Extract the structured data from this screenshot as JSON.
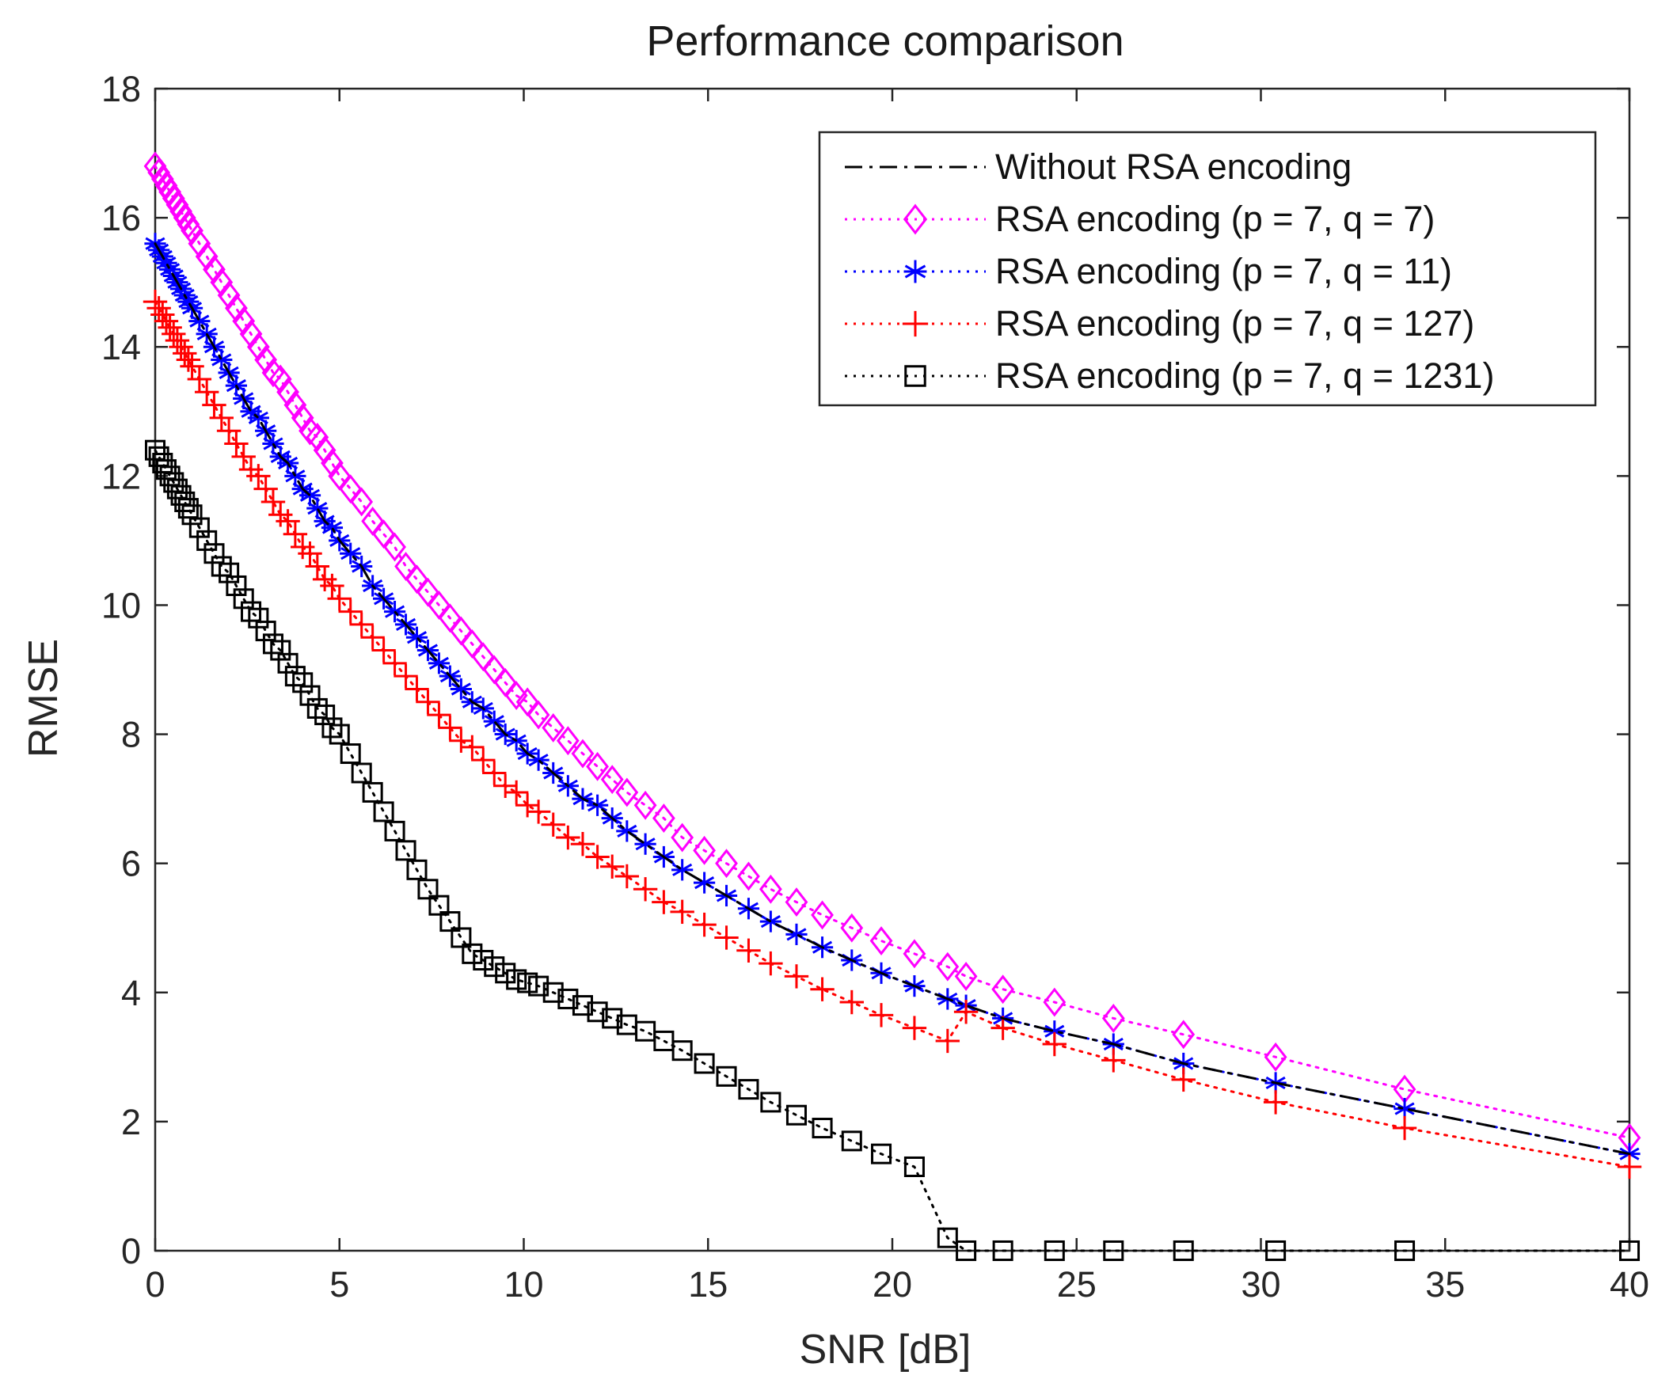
{
  "chart_data": {
    "type": "line",
    "title": "Performance comparison",
    "xlabel": "SNR [dB]",
    "ylabel": "RMSE",
    "xlim": [
      0,
      40
    ],
    "ylim": [
      0,
      18
    ],
    "xticks": [
      0,
      5,
      10,
      15,
      20,
      25,
      30,
      35,
      40
    ],
    "yticks": [
      0,
      2,
      4,
      6,
      8,
      10,
      12,
      14,
      16,
      18
    ],
    "grid": false,
    "legend_position": "top-right",
    "x": [
      0,
      0.1,
      0.2,
      0.3,
      0.4,
      0.5,
      0.6,
      0.7,
      0.8,
      0.9,
      1.0,
      1.2,
      1.4,
      1.6,
      1.8,
      2.0,
      2.2,
      2.4,
      2.6,
      2.8,
      3.0,
      3.2,
      3.4,
      3.6,
      3.8,
      4.0,
      4.2,
      4.4,
      4.6,
      4.8,
      5.0,
      5.3,
      5.6,
      5.9,
      6.2,
      6.5,
      6.8,
      7.1,
      7.4,
      7.7,
      8.0,
      8.3,
      8.6,
      8.9,
      9.2,
      9.5,
      9.8,
      10.1,
      10.4,
      10.8,
      11.2,
      11.6,
      12.0,
      12.4,
      12.8,
      13.3,
      13.8,
      14.3,
      14.9,
      15.5,
      16.1,
      16.7,
      17.4,
      18.1,
      18.9,
      19.7,
      20.6,
      21.5,
      22.0,
      23.0,
      24.4,
      26.0,
      27.9,
      30.4,
      33.9,
      40.0
    ],
    "series": [
      {
        "name": "Without RSA encoding",
        "color": "#000000",
        "line_style": "dash-dot",
        "marker": "none",
        "values": [
          15.6,
          15.5,
          15.4,
          15.3,
          15.2,
          15.1,
          15.0,
          14.9,
          14.8,
          14.7,
          14.6,
          14.4,
          14.2,
          14.0,
          13.8,
          13.6,
          13.4,
          13.2,
          13.0,
          12.9,
          12.7,
          12.5,
          12.3,
          12.2,
          12.0,
          11.8,
          11.7,
          11.5,
          11.3,
          11.2,
          11.0,
          10.8,
          10.6,
          10.3,
          10.1,
          9.9,
          9.7,
          9.5,
          9.3,
          9.1,
          8.9,
          8.7,
          8.5,
          8.4,
          8.2,
          8.0,
          7.9,
          7.7,
          7.6,
          7.4,
          7.2,
          7.0,
          6.9,
          6.7,
          6.5,
          6.3,
          6.1,
          5.9,
          5.7,
          5.5,
          5.3,
          5.1,
          4.9,
          4.7,
          4.5,
          4.3,
          4.1,
          3.9,
          3.8,
          3.6,
          3.4,
          3.2,
          2.9,
          2.6,
          2.2,
          1.5
        ]
      },
      {
        "name": "RSA encoding (p = 7, q = 7)",
        "color": "#ff00ff",
        "line_style": "dotted",
        "marker": "diamond",
        "values": [
          16.8,
          16.7,
          16.6,
          16.5,
          16.4,
          16.3,
          16.2,
          16.1,
          16.0,
          15.9,
          15.8,
          15.6,
          15.4,
          15.2,
          15.0,
          14.8,
          14.6,
          14.4,
          14.2,
          14.0,
          13.8,
          13.6,
          13.5,
          13.3,
          13.1,
          12.9,
          12.7,
          12.6,
          12.4,
          12.2,
          12.0,
          11.8,
          11.6,
          11.3,
          11.1,
          10.9,
          10.6,
          10.4,
          10.2,
          10.0,
          9.8,
          9.6,
          9.4,
          9.2,
          9.0,
          8.8,
          8.6,
          8.5,
          8.3,
          8.1,
          7.9,
          7.7,
          7.5,
          7.3,
          7.1,
          6.9,
          6.7,
          6.4,
          6.2,
          6.0,
          5.8,
          5.6,
          5.4,
          5.2,
          5.0,
          4.8,
          4.6,
          4.4,
          4.25,
          4.05,
          3.85,
          3.6,
          3.35,
          3.0,
          2.5,
          1.75
        ]
      },
      {
        "name": "RSA encoding (p = 7, q = 11)",
        "color": "#0000ff",
        "line_style": "dotted",
        "marker": "asterisk",
        "values": [
          15.6,
          15.5,
          15.4,
          15.3,
          15.2,
          15.1,
          15.0,
          14.9,
          14.8,
          14.7,
          14.6,
          14.4,
          14.2,
          14.0,
          13.8,
          13.6,
          13.4,
          13.2,
          13.0,
          12.9,
          12.7,
          12.5,
          12.3,
          12.2,
          12.0,
          11.8,
          11.7,
          11.5,
          11.3,
          11.2,
          11.0,
          10.8,
          10.6,
          10.3,
          10.1,
          9.9,
          9.7,
          9.5,
          9.3,
          9.1,
          8.9,
          8.7,
          8.5,
          8.4,
          8.2,
          8.0,
          7.9,
          7.7,
          7.6,
          7.4,
          7.2,
          7.0,
          6.9,
          6.7,
          6.5,
          6.3,
          6.1,
          5.9,
          5.7,
          5.5,
          5.3,
          5.1,
          4.9,
          4.7,
          4.5,
          4.3,
          4.1,
          3.9,
          3.8,
          3.6,
          3.4,
          3.2,
          2.9,
          2.6,
          2.2,
          1.5
        ]
      },
      {
        "name": "RSA encoding (p = 7, q = 127)",
        "color": "#ff0000",
        "line_style": "dotted",
        "marker": "plus",
        "values": [
          14.7,
          14.6,
          14.5,
          14.4,
          14.3,
          14.2,
          14.1,
          14.0,
          13.9,
          13.8,
          13.7,
          13.5,
          13.3,
          13.1,
          12.9,
          12.7,
          12.5,
          12.3,
          12.1,
          12.0,
          11.8,
          11.6,
          11.4,
          11.3,
          11.1,
          10.9,
          10.8,
          10.6,
          10.4,
          10.3,
          10.1,
          9.9,
          9.7,
          9.5,
          9.3,
          9.1,
          8.9,
          8.7,
          8.5,
          8.3,
          8.1,
          7.9,
          7.8,
          7.6,
          7.4,
          7.2,
          7.1,
          6.9,
          6.8,
          6.6,
          6.4,
          6.3,
          6.1,
          5.95,
          5.8,
          5.6,
          5.4,
          5.25,
          5.05,
          4.85,
          4.65,
          4.45,
          4.25,
          4.05,
          3.85,
          3.65,
          3.45,
          3.25,
          3.7,
          3.45,
          3.2,
          2.95,
          2.65,
          2.3,
          1.9,
          1.3
        ]
      },
      {
        "name": "RSA encoding (p = 7, q = 1231)",
        "color": "#000000",
        "line_style": "dotted",
        "marker": "square",
        "values": [
          12.4,
          12.3,
          12.2,
          12.1,
          12.0,
          11.9,
          11.8,
          11.7,
          11.6,
          11.5,
          11.4,
          11.2,
          11.0,
          10.8,
          10.6,
          10.5,
          10.3,
          10.1,
          9.9,
          9.8,
          9.6,
          9.4,
          9.3,
          9.1,
          8.9,
          8.8,
          8.6,
          8.4,
          8.3,
          8.1,
          8.0,
          7.7,
          7.4,
          7.1,
          6.8,
          6.5,
          6.2,
          5.9,
          5.6,
          5.35,
          5.1,
          4.85,
          4.6,
          4.5,
          4.4,
          4.3,
          4.2,
          4.15,
          4.1,
          4.0,
          3.9,
          3.8,
          3.7,
          3.6,
          3.5,
          3.4,
          3.25,
          3.1,
          2.9,
          2.7,
          2.5,
          2.3,
          2.1,
          1.9,
          1.7,
          1.5,
          1.3,
          0.2,
          0,
          0,
          0,
          0,
          0,
          0,
          0,
          0
        ]
      }
    ]
  }
}
